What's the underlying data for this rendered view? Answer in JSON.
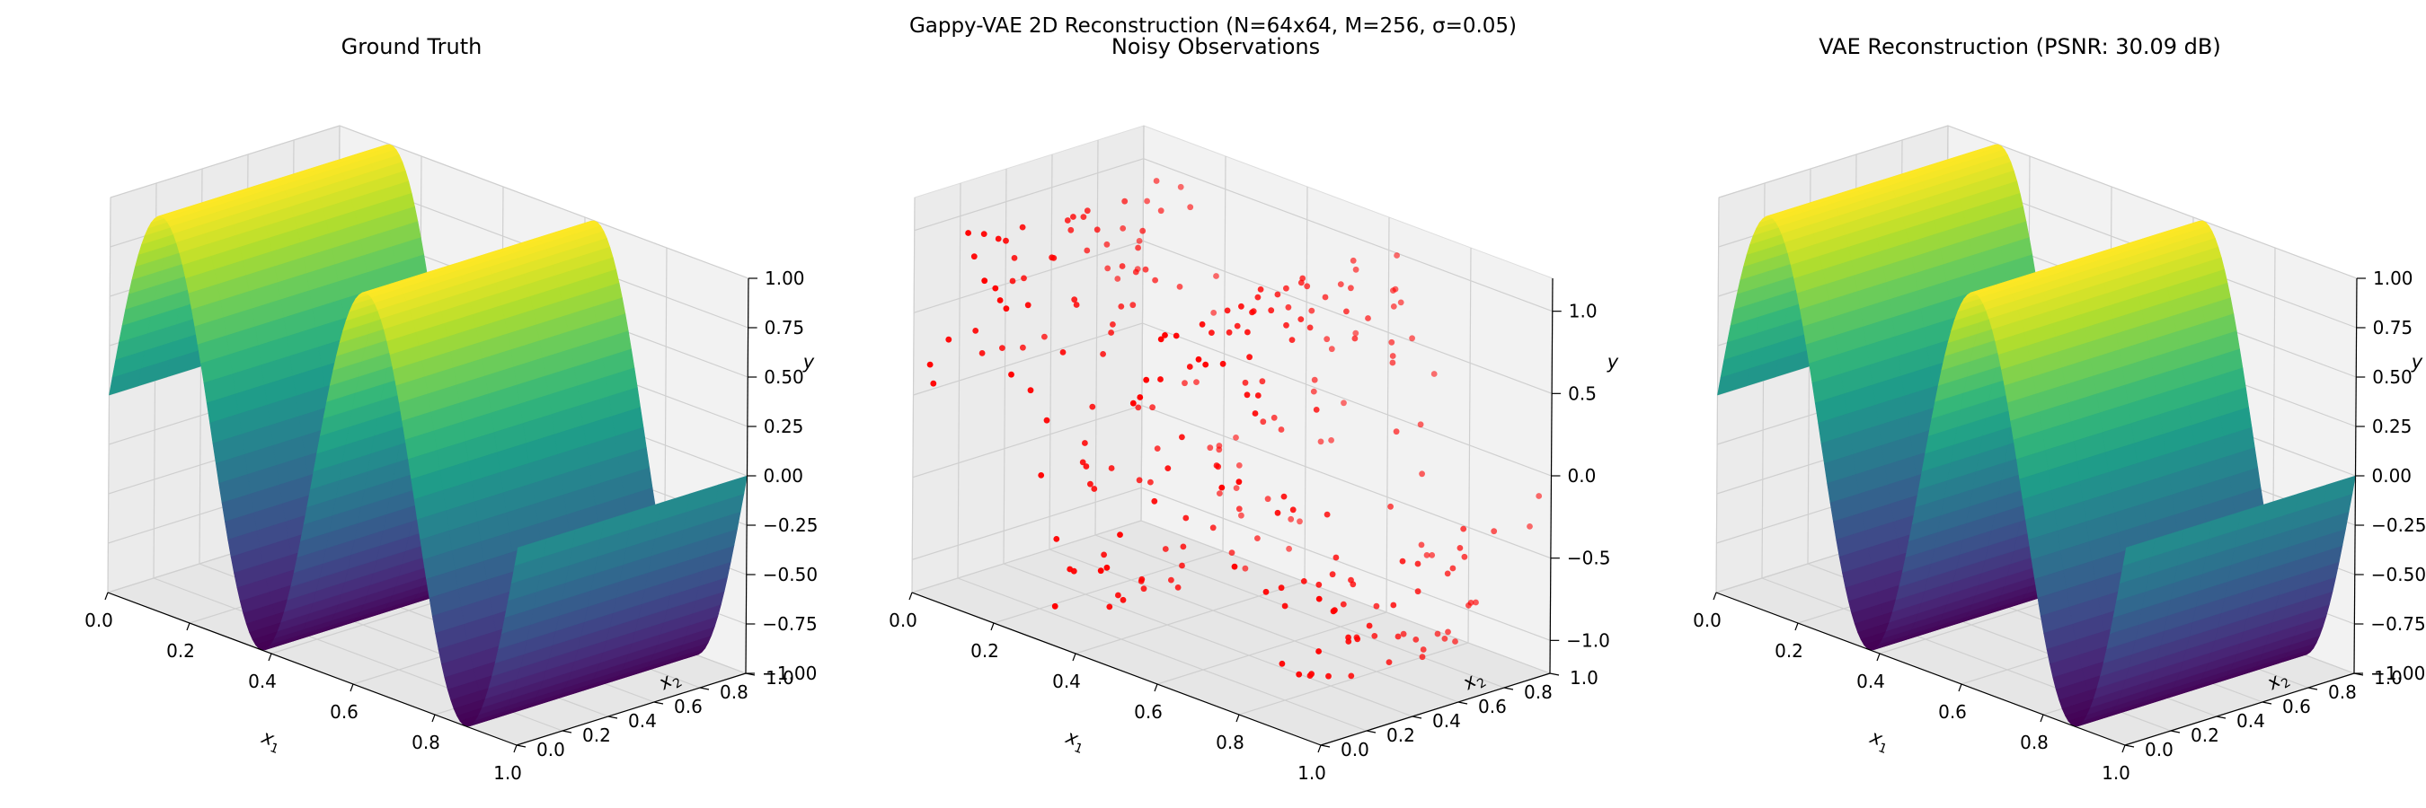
{
  "figure": {
    "suptitle": "Gappy-VAE 2D Reconstruction (N=64x64, M=256, σ=0.05)"
  },
  "chart_data": [
    {
      "type": "surface3d",
      "title": "Ground Truth",
      "xlabel": "x1",
      "ylabel": "x2",
      "zlabel": "y",
      "xlim": [
        0,
        1
      ],
      "ylim": [
        0,
        1
      ],
      "zlim": [
        -1,
        1
      ],
      "xticks": [
        "0.0",
        "0.2",
        "0.4",
        "0.6",
        "0.8",
        "1.0"
      ],
      "yticks": [
        "0.0",
        "0.2",
        "0.4",
        "0.6",
        "0.8",
        "1.0"
      ],
      "zticks": [
        "1.00",
        "0.75",
        "0.50",
        "0.25",
        "0.00",
        "−0.25",
        "−0.50",
        "−0.75",
        "−1.00"
      ],
      "function": "y = sin(4π·x1), constant along x2",
      "colormap": "viridis",
      "grid": true
    },
    {
      "type": "scatter3d",
      "title": "Noisy Observations",
      "xlabel": "x1",
      "ylabel": "x2",
      "zlabel": "y",
      "xlim": [
        0,
        1
      ],
      "ylim": [
        0,
        1
      ],
      "zlim": [
        -1.2,
        1.2
      ],
      "xticks": [
        "0.0",
        "0.2",
        "0.4",
        "0.6",
        "0.8",
        "1.0"
      ],
      "yticks": [
        "0.0",
        "0.2",
        "0.4",
        "0.6",
        "0.8",
        "1.0"
      ],
      "zticks": [
        "1.0",
        "0.5",
        "0.0",
        "−0.5",
        "−1.0"
      ],
      "n_points": 256,
      "noise_sigma": 0.05,
      "marker_color": "#ff0000",
      "grid": true
    },
    {
      "type": "surface3d",
      "title": "VAE Reconstruction (PSNR: 30.09 dB)",
      "xlabel": "x1",
      "ylabel": "x2",
      "zlabel": "y",
      "xlim": [
        0,
        1
      ],
      "ylim": [
        0,
        1
      ],
      "zlim": [
        -1,
        1
      ],
      "xticks": [
        "0.0",
        "0.2",
        "0.4",
        "0.6",
        "0.8",
        "1.0"
      ],
      "yticks": [
        "0.0",
        "0.2",
        "0.4",
        "0.6",
        "0.8",
        "1.0"
      ],
      "zticks": [
        "1.00",
        "0.75",
        "0.50",
        "0.25",
        "0.00",
        "−0.25",
        "−0.50",
        "−0.75",
        "−1.00"
      ],
      "function": "y ≈ sin(4π·x1), constant along x2",
      "colormap": "viridis",
      "grid": true
    }
  ]
}
